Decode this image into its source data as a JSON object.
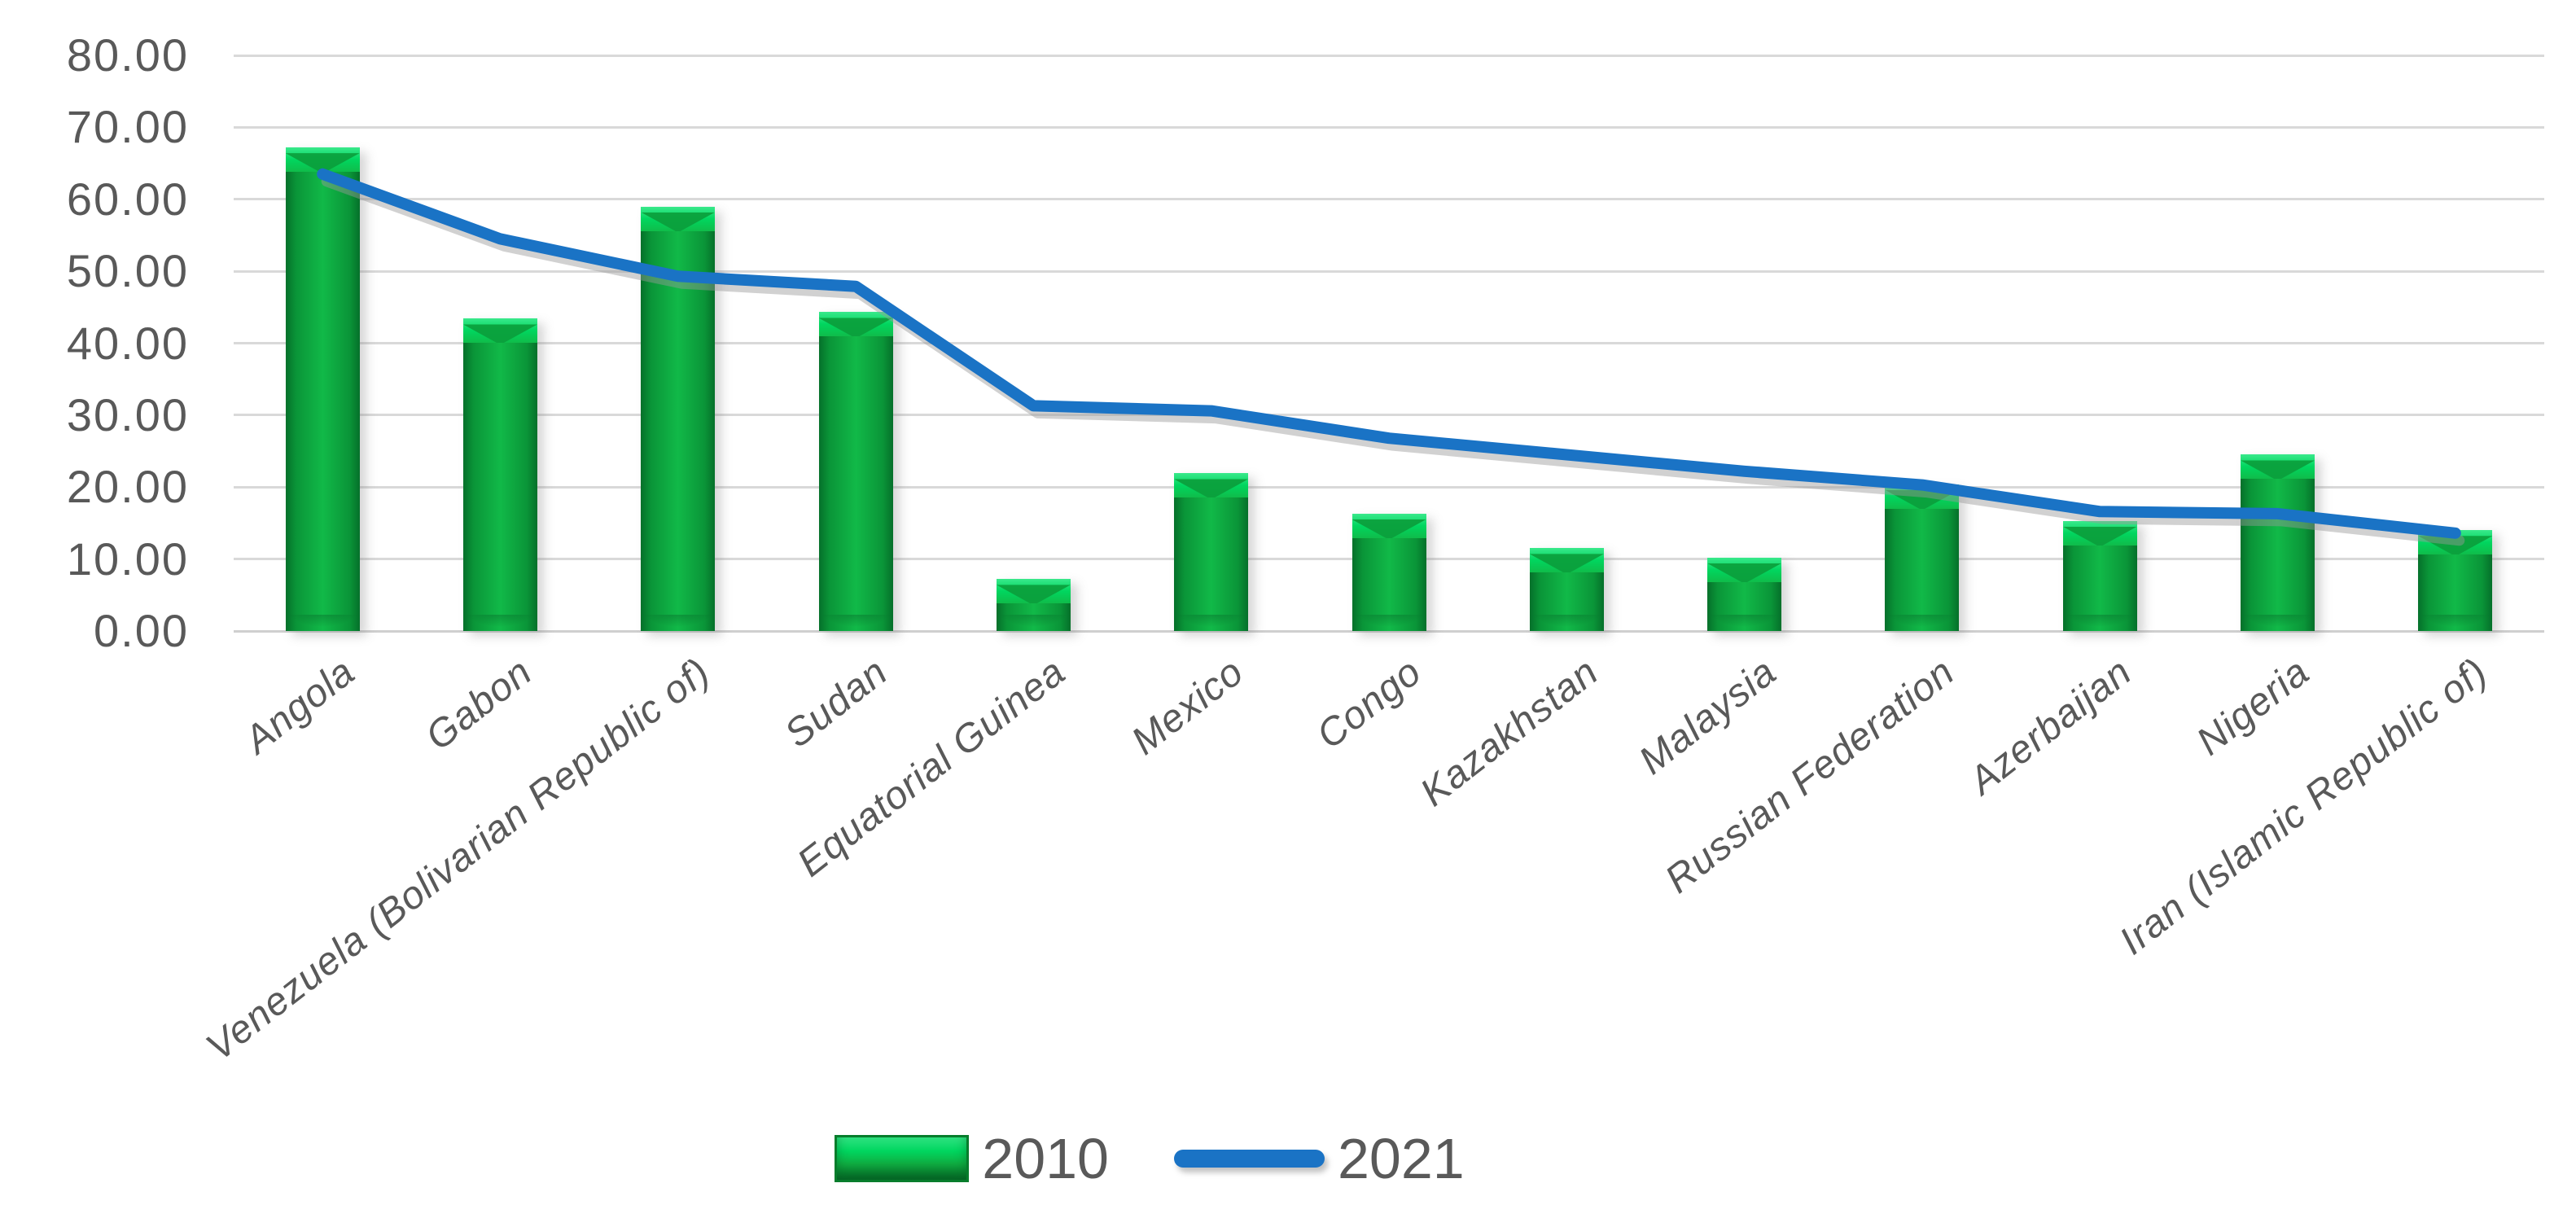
{
  "chart_data": {
    "type": "combo-bar-line",
    "title": "",
    "xlabel": "",
    "ylabel": "",
    "categories": [
      "Angola",
      "Gabon",
      "Venezuela (Bolivarian Republic of)",
      "Sudan",
      "Equatorial Guinea",
      "Mexico",
      "Congo",
      "Kazakhstan",
      "Malaysia",
      "Russian Federation",
      "Azerbaijan",
      "Nigeria",
      "Iran (Islamic Republic of)"
    ],
    "series": [
      {
        "name": "2010",
        "type": "bar",
        "color": "#0CA83E",
        "values": [
          67.2,
          43.4,
          59.0,
          44.3,
          7.2,
          21.9,
          16.3,
          11.5,
          10.2,
          20.4,
          15.3,
          24.5,
          14.0
        ]
      },
      {
        "name": "2021",
        "type": "line",
        "color": "#1A73C5",
        "values": [
          63.5,
          54.5,
          49.3,
          47.9,
          31.3,
          30.6,
          26.8,
          24.5,
          22.2,
          20.3,
          16.6,
          16.3,
          13.6
        ]
      }
    ],
    "ylim": [
      0,
      80
    ],
    "ytick_step": 10,
    "ytick_labels": [
      "80.00",
      "70.00",
      "60.00",
      "50.00",
      "40.00",
      "30.00",
      "20.00",
      "10.00",
      "0.00"
    ],
    "grid": "horizontal",
    "legend_position": "bottom-center",
    "x_tick_label_rotation_deg": 38
  },
  "legend": {
    "items": [
      {
        "label": "2010",
        "swatch": "green-3d-bar"
      },
      {
        "label": "2021",
        "swatch": "blue-line"
      }
    ]
  },
  "colors": {
    "bar_green": "#0CA83E",
    "bar_green_dark": "#05702A",
    "bar_green_highlight": "#00D65F",
    "line_blue": "#1A73C5",
    "line_shadow": "#9A9A9A",
    "gridline": "#D9D9D9",
    "axis_text": "#595959",
    "background": "#FFFFFF"
  }
}
